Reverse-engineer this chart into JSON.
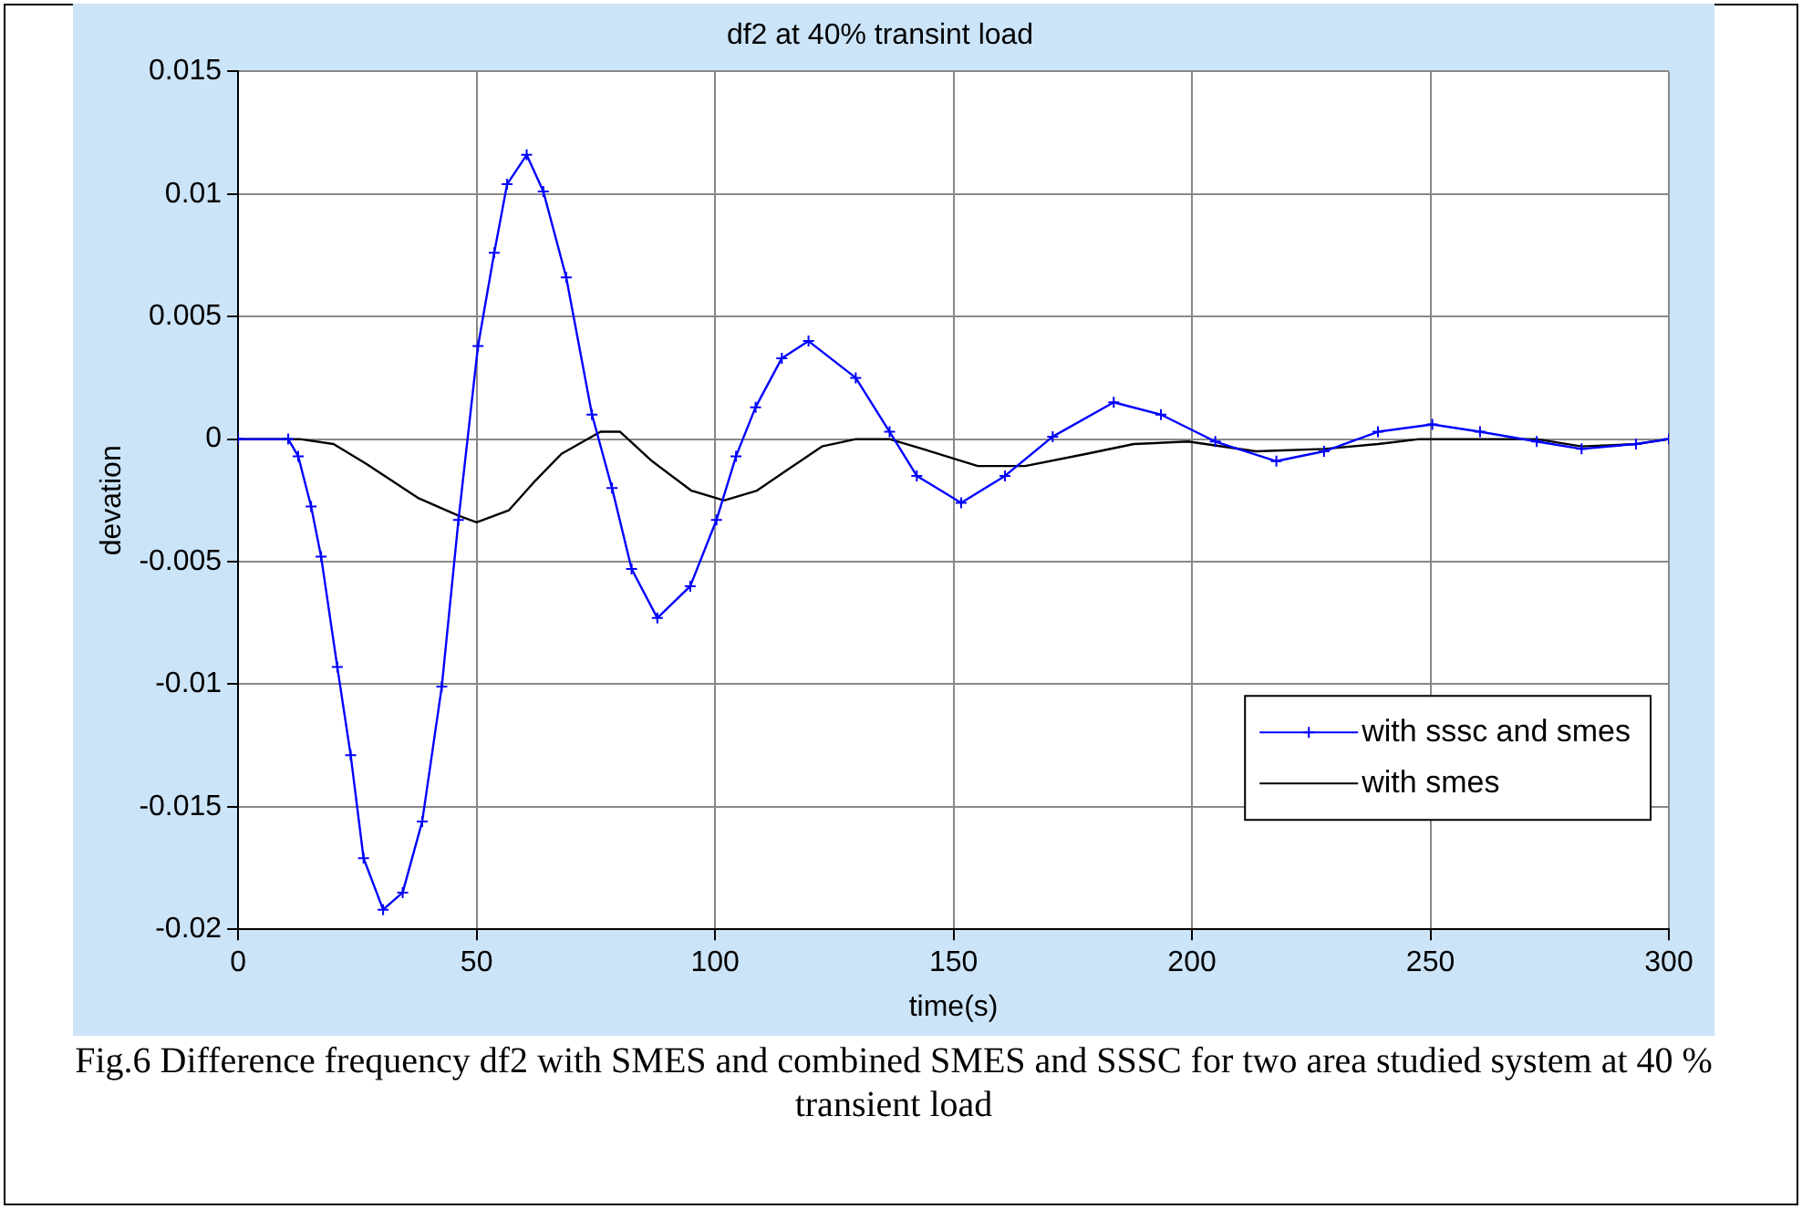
{
  "chart_data": {
    "type": "line",
    "title": "df2 at 40% transint load",
    "xlabel": "time(s)",
    "ylabel": "devation",
    "xlim": [
      0,
      300
    ],
    "xticks": [
      0,
      50,
      100,
      150,
      200,
      250,
      300
    ],
    "ylim": [
      -0.02,
      0.015
    ],
    "yticks": [
      -0.02,
      -0.015,
      -0.01,
      -0.005,
      0,
      0.005,
      0.01,
      0.015
    ],
    "grid": true,
    "legend": "bottom right",
    "line_style": "solid",
    "annotations": [
      "Fig.6 Difference frequency df2 with SMES and combined SMES and SSSC for two area studied system at 40 % transient load"
    ],
    "series": [
      {
        "name": "with sssc and smes",
        "color": "#0000ff",
        "marker": "cross",
        "x": [
          0,
          10.5,
          12.6,
          15.3,
          17.4,
          20.8,
          23.6,
          26.3,
          30.4,
          34.5,
          38.6,
          42.7,
          46.2,
          50.3,
          53.7,
          56.4,
          60.5,
          64,
          68.8,
          74.2,
          78.4,
          82.5,
          87.9,
          94.8,
          100.3,
          104.4,
          108.5,
          114,
          119.6,
          129.5,
          136.6,
          142.3,
          151.6,
          160.8,
          170.8,
          183.6,
          193.5,
          204.9,
          217.7,
          227.7,
          239,
          250.4,
          260.4,
          272.3,
          281.7,
          293.1,
          300
        ],
        "values": [
          0,
          0,
          -0.0007,
          -0.00275,
          -0.0048,
          -0.0093,
          -0.0129,
          -0.0171,
          -0.0192,
          -0.0185,
          -0.0156,
          -0.0101,
          -0.0033,
          0.0038,
          0.0076,
          0.0104,
          0.0116,
          0.0101,
          0.0066,
          0.001,
          -0.002,
          -0.0053,
          -0.0073,
          -0.006,
          -0.0033,
          -0.0007,
          0.0013,
          0.0033,
          0.004,
          0.0025,
          0.0003,
          -0.0015,
          -0.0026,
          -0.0015,
          0.0001,
          0.0015,
          0.001,
          -0.0001,
          -0.0009,
          -0.0005,
          0.0003,
          0.0006,
          0.0003,
          -0.0001,
          -0.0004,
          -0.0002,
          0
        ]
      },
      {
        "name": "with smes",
        "color": "#000000",
        "marker": "none",
        "x": [
          0,
          13,
          20,
          26.8,
          37.7,
          45.9,
          50,
          56.8,
          62.3,
          67.8,
          76,
          80.1,
          86.8,
          95,
          101.9,
          108.8,
          115.6,
          122.4,
          129.5,
          136.6,
          145.2,
          155.1,
          165,
          177.9,
          187.8,
          199.2,
          213.4,
          227.7,
          239,
          247.6,
          272.3,
          281.7,
          293.1,
          300
        ],
        "values": [
          0,
          0,
          -0.0002,
          -0.001,
          -0.0024,
          -0.0031,
          -0.0034,
          -0.0029,
          -0.0017,
          -0.0006,
          0.0003,
          0.0003,
          -0.0009,
          -0.0021,
          -0.0025,
          -0.0021,
          -0.0012,
          -0.0003,
          0,
          0,
          -0.0005,
          -0.0011,
          -0.0011,
          -0.0006,
          -0.0002,
          -0.0001,
          -0.0005,
          -0.0004,
          -0.0002,
          0,
          0,
          -0.0003,
          -0.0002,
          0
        ]
      }
    ]
  }
}
